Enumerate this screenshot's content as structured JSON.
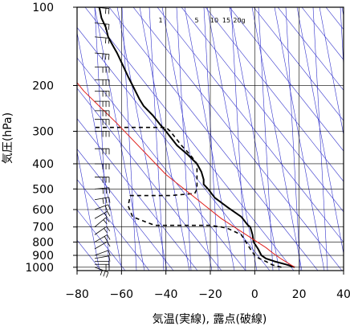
{
  "chart_data": {
    "type": "line",
    "title": "",
    "xlabel": "気温(実線), 露点(破線)",
    "ylabel": "気圧(hPa)",
    "xlim": [
      -80,
      40
    ],
    "ylim": [
      1030,
      100
    ],
    "y_scale": "log",
    "grid": true,
    "x_ticks": [
      -80,
      -60,
      -40,
      -20,
      0,
      20,
      40
    ],
    "x_tick_labels": [
      "−80",
      "−60",
      "−40",
      "−20",
      "0",
      "20",
      "40"
    ],
    "y_ticks": [
      100,
      200,
      300,
      400,
      500,
      600,
      700,
      800,
      900,
      1000
    ],
    "y_tick_labels": [
      "100",
      "200",
      "300",
      "400",
      "500",
      "600",
      "700",
      "800",
      "900",
      "1000"
    ],
    "mixing_ratio_labels": [
      "1",
      "5",
      "10",
      "15",
      "20g"
    ],
    "colors": {
      "temperature": "#000000",
      "dewpoint": "#000000",
      "parcel": "#e0201c",
      "adiabats": "#3333cc",
      "grid": "#000000"
    },
    "series": [
      {
        "name": "",
        "style": "solid",
        "points": [
          [
            18,
            1000
          ],
          [
            14,
            975
          ],
          [
            9,
            950
          ],
          [
            5,
            925
          ],
          [
            3,
            900
          ],
          [
            1.5,
            850
          ],
          [
            -0.5,
            800
          ],
          [
            -1,
            750
          ],
          [
            -2,
            700
          ],
          [
            -3,
            690
          ],
          [
            -6,
            640
          ],
          [
            -12,
            590
          ],
          [
            -18,
            540
          ],
          [
            -21,
            500
          ],
          [
            -23,
            480
          ],
          [
            -23,
            460
          ],
          [
            -24,
            430
          ],
          [
            -26,
            400
          ],
          [
            -30,
            370
          ],
          [
            -35,
            340
          ],
          [
            -40,
            300
          ],
          [
            -43,
            280
          ],
          [
            -46,
            260
          ],
          [
            -50,
            240
          ],
          [
            -52,
            225
          ],
          [
            -55,
            200
          ],
          [
            -57,
            185
          ],
          [
            -59,
            170
          ],
          [
            -62,
            150
          ],
          [
            -64,
            140
          ],
          [
            -66,
            130
          ],
          [
            -67,
            120
          ],
          [
            -69,
            110
          ],
          [
            -70,
            100
          ]
        ]
      },
      {
        "name": "",
        "style": "dashed",
        "points": [
          [
            12,
            1000
          ],
          [
            8,
            980
          ],
          [
            5,
            950
          ],
          [
            2,
            925
          ],
          [
            0,
            900
          ],
          [
            -2,
            850
          ],
          [
            -4,
            800
          ],
          [
            -6,
            750
          ],
          [
            -12,
            710
          ],
          [
            -15,
            700
          ],
          [
            -20,
            690
          ],
          [
            -35,
            690
          ],
          [
            -45,
            690
          ],
          [
            -55,
            640
          ],
          [
            -57,
            580
          ],
          [
            -56,
            530
          ],
          [
            -38,
            530
          ],
          [
            -27,
            520
          ],
          [
            -26,
            500
          ],
          [
            -26,
            470
          ],
          [
            -26,
            430
          ],
          [
            -26,
            400
          ],
          [
            -29,
            370
          ],
          [
            -33,
            340
          ],
          [
            -38,
            300
          ],
          [
            -40,
            290
          ],
          [
            -50,
            290
          ],
          [
            -70,
            290
          ],
          [
            -72,
            290
          ]
        ]
      },
      {
        "name": "",
        "style": "solid",
        "points": [
          [
            18,
            1000
          ],
          [
            12,
            930
          ],
          [
            8,
            880
          ],
          [
            5,
            840
          ],
          [
            -15,
            650
          ],
          [
            -40,
            440
          ],
          [
            -62,
            280
          ],
          [
            -77,
            210
          ],
          [
            -80,
            195
          ]
        ]
      }
    ],
    "wind_barbs": [
      {
        "p": 1000,
        "speed": 25,
        "dir": 290
      },
      {
        "p": 975,
        "speed": 15,
        "dir": 270
      },
      {
        "p": 950,
        "speed": 10,
        "dir": 270
      },
      {
        "p": 925,
        "speed": 10,
        "dir": 260
      },
      {
        "p": 900,
        "speed": 10,
        "dir": 250
      },
      {
        "p": 850,
        "speed": 10,
        "dir": 240
      },
      {
        "p": 800,
        "speed": 15,
        "dir": 240
      },
      {
        "p": 750,
        "speed": 15,
        "dir": 235
      },
      {
        "p": 700,
        "speed": 20,
        "dir": 230
      },
      {
        "p": 650,
        "speed": 20,
        "dir": 240
      },
      {
        "p": 600,
        "speed": 20,
        "dir": 250
      },
      {
        "p": 550,
        "speed": 25,
        "dir": 260
      },
      {
        "p": 500,
        "speed": 25,
        "dir": 265
      },
      {
        "p": 450,
        "speed": 25,
        "dir": 270
      },
      {
        "p": 400,
        "speed": 30,
        "dir": 270
      },
      {
        "p": 350,
        "speed": 30,
        "dir": 270
      },
      {
        "p": 300,
        "speed": 30,
        "dir": 270
      },
      {
        "p": 270,
        "speed": 30,
        "dir": 270
      },
      {
        "p": 250,
        "speed": 30,
        "dir": 270
      },
      {
        "p": 230,
        "speed": 25,
        "dir": 270
      },
      {
        "p": 210,
        "speed": 25,
        "dir": 270
      },
      {
        "p": 190,
        "speed": 25,
        "dir": 270
      },
      {
        "p": 170,
        "speed": 25,
        "dir": 270
      },
      {
        "p": 150,
        "speed": 25,
        "dir": 275
      },
      {
        "p": 130,
        "speed": 20,
        "dir": 275
      },
      {
        "p": 115,
        "speed": 20,
        "dir": 275
      },
      {
        "p": 100,
        "speed": 20,
        "dir": 275
      }
    ]
  }
}
